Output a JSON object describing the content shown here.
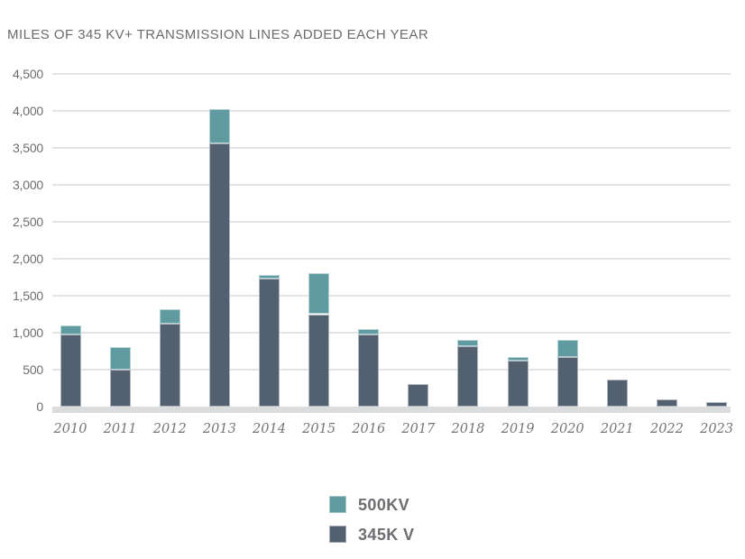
{
  "chart_data": {
    "type": "bar",
    "stacked": true,
    "title": "MILES OF 345 KV+ TRANSMISSION LINES ADDED EACH YEAR",
    "categories": [
      "2010",
      "2011",
      "2012",
      "2013",
      "2014",
      "2015",
      "2016",
      "2017",
      "2018",
      "2019",
      "2020",
      "2021",
      "2022",
      "2023"
    ],
    "series": [
      {
        "name": "345K V",
        "color": "#52606f",
        "values": [
          970,
          500,
          1125,
          3555,
          1730,
          1250,
          980,
          300,
          815,
          620,
          670,
          370,
          95,
          55
        ]
      },
      {
        "name": "500KV",
        "color": "#5f9ba0",
        "values": [
          130,
          300,
          195,
          465,
          45,
          560,
          70,
          0,
          90,
          55,
          230,
          0,
          0,
          0
        ]
      }
    ],
    "totals": [
      1100,
      800,
      1320,
      4020,
      1775,
      1810,
      1050,
      300,
      905,
      675,
      900,
      370,
      95,
      55
    ],
    "legend": [
      {
        "label": "500KV",
        "color": "#5f9ba0"
      },
      {
        "label": "345K V",
        "color": "#52606f"
      }
    ],
    "legend_position": "bottom-center",
    "xlabel": "",
    "ylabel": "",
    "ylim": [
      0,
      4500
    ],
    "ytick_step": 500,
    "ytick_labels": [
      "0",
      "500",
      "1,000",
      "1,500",
      "2,000",
      "2,500",
      "3,000",
      "3,500",
      "4,000",
      "4,500"
    ],
    "grid": true,
    "colors": {
      "title_text": "#6a6b6e",
      "axis_text": "#6d6e71",
      "xlabel_text": "#737577",
      "gridline": "#e4e4e5",
      "baseline_band": "#dbdcdd",
      "background": "#ffffff"
    }
  }
}
